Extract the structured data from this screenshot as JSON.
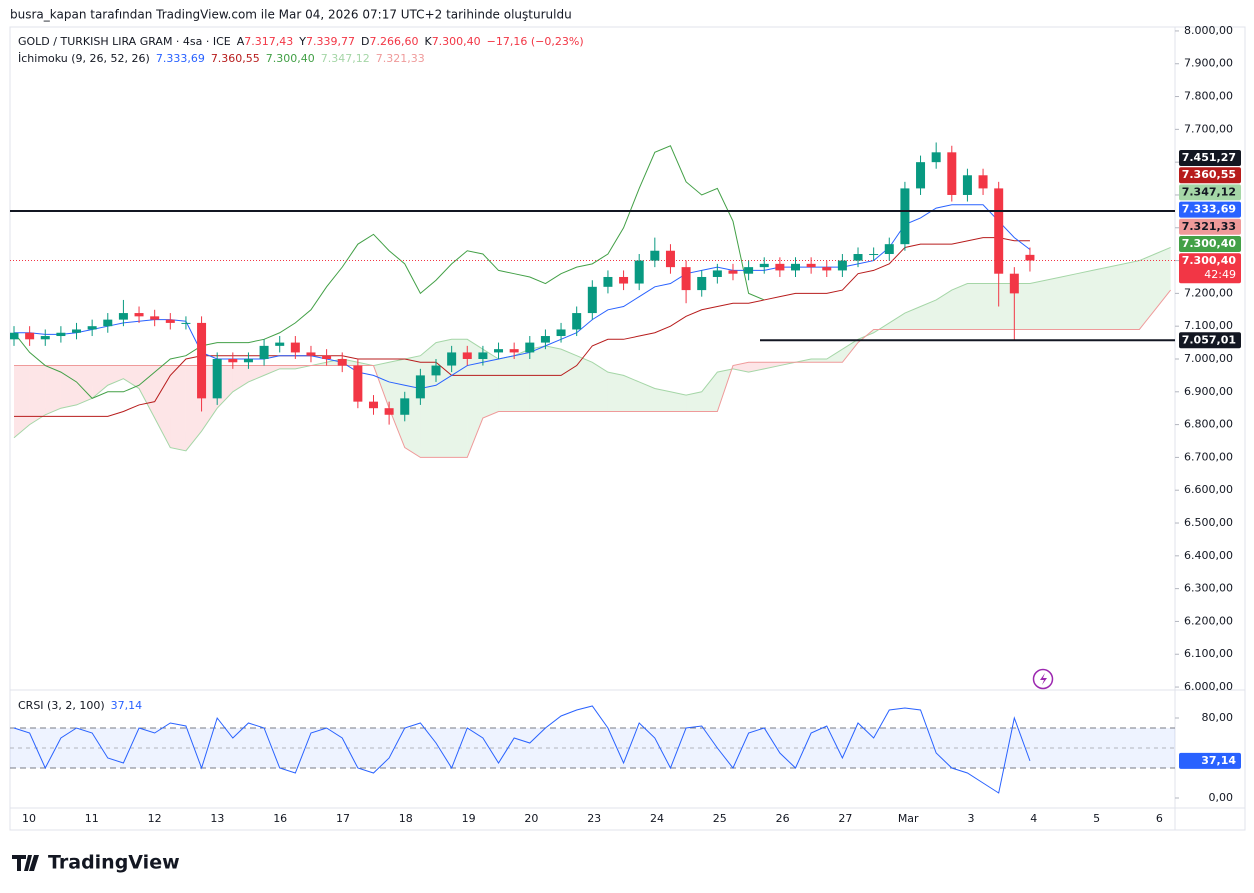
{
  "chart_data": {
    "type": "candlestick",
    "watermark": "busra_kapan tarafından TradingView.com ile Mar 04, 2026 07:17 UTC+2 tarihinde oluşturuldu",
    "symbol": "GOLD / TURKISH LIRA GRAM · 4sa · ICE",
    "ohlc": [
      {
        "key": "A",
        "value": "7.317,43"
      },
      {
        "key": "Y",
        "value": "7.339,77"
      },
      {
        "key": "D",
        "value": "7.266,60"
      },
      {
        "key": "K",
        "value": "7.300,40"
      }
    ],
    "change": "−17,16 (−0,23%)",
    "brand": "TradingView",
    "categories": [
      "10",
      "11",
      "12",
      "13",
      "16",
      "17",
      "18",
      "19",
      "20",
      "23",
      "24",
      "25",
      "26",
      "27",
      "Mar",
      "3",
      "4",
      "5",
      "6"
    ],
    "ylim": [
      5991,
      8012
    ],
    "yticks": [
      {
        "value": 6000,
        "label": "6.000,00"
      },
      {
        "value": 6100,
        "label": "6.100,00"
      },
      {
        "value": 6200,
        "label": "6.200,00"
      },
      {
        "value": 6300,
        "label": "6.300,00"
      },
      {
        "value": 6400,
        "label": "6.400,00"
      },
      {
        "value": 6500,
        "label": "6.500,00"
      },
      {
        "value": 6600,
        "label": "6.600,00"
      },
      {
        "value": 6700,
        "label": "6.700,00"
      },
      {
        "value": 6800,
        "label": "6.800,00"
      },
      {
        "value": 6900,
        "label": "6.900,00"
      },
      {
        "value": 7000,
        "label": "7.000,00"
      },
      {
        "value": 7100,
        "label": "7.100,00"
      },
      {
        "value": 7200,
        "label": "7.200,00"
      },
      {
        "value": 7300,
        "label": "7.300,00"
      },
      {
        "value": 7400,
        "label": "7.400,00"
      },
      {
        "value": 7500,
        "label": "7.500,00"
      },
      {
        "value": 7600,
        "label": "7.600,00"
      },
      {
        "value": 7700,
        "label": "7.700,00"
      },
      {
        "value": 7800,
        "label": "7.800,00"
      },
      {
        "value": 7900,
        "label": "7.900,00"
      },
      {
        "value": 8000,
        "label": "8.000,00"
      }
    ],
    "up_color": "#089981",
    "down_color": "#f23645",
    "candles": {
      "open": [
        7060,
        7080,
        7060,
        7070,
        7080,
        7090,
        7100,
        7120,
        7140,
        7130,
        7120,
        7110,
        7110,
        6880,
        7000,
        6990,
        7000,
        7040,
        7050,
        7020,
        7010,
        7000,
        6980,
        6870,
        6850,
        6830,
        6880,
        6950,
        6980,
        7020,
        7000,
        7020,
        7030,
        7020,
        7050,
        7070,
        7090,
        7140,
        7220,
        7250,
        7230,
        7300,
        7330,
        7280,
        7210,
        7250,
        7270,
        7260,
        7280,
        7290,
        7270,
        7290,
        7280,
        7270,
        7300,
        7320,
        7320,
        7350,
        7520,
        7600,
        7630,
        7500,
        7560,
        7520,
        7260,
        7317.43
      ],
      "high": [
        7100,
        7100,
        7090,
        7100,
        7110,
        7120,
        7140,
        7180,
        7160,
        7150,
        7140,
        7130,
        7130,
        7020,
        7020,
        7020,
        7060,
        7070,
        7070,
        7040,
        7030,
        7020,
        7000,
        6890,
        6870,
        6900,
        6970,
        7000,
        7040,
        7040,
        7040,
        7050,
        7050,
        7070,
        7090,
        7110,
        7160,
        7240,
        7270,
        7270,
        7320,
        7370,
        7350,
        7300,
        7270,
        7290,
        7290,
        7300,
        7310,
        7310,
        7310,
        7310,
        7300,
        7320,
        7340,
        7340,
        7370,
        7540,
        7620,
        7660,
        7650,
        7580,
        7580,
        7540,
        7280,
        7339.77
      ],
      "low": [
        7040,
        7040,
        7040,
        7050,
        7060,
        7070,
        7080,
        7100,
        7110,
        7100,
        7090,
        7090,
        6840,
        6860,
        6970,
        6970,
        6980,
        7020,
        7000,
        6990,
        6980,
        6960,
        6850,
        6830,
        6800,
        6810,
        6860,
        6930,
        6960,
        6980,
        6980,
        7000,
        7000,
        7000,
        7030,
        7050,
        7070,
        7120,
        7200,
        7210,
        7210,
        7280,
        7260,
        7170,
        7190,
        7230,
        7240,
        7240,
        7260,
        7250,
        7250,
        7260,
        7250,
        7250,
        7280,
        7300,
        7300,
        7330,
        7500,
        7580,
        7480,
        7480,
        7500,
        7160,
        7057,
        7266.6
      ],
      "close": [
        7080,
        7060,
        7070,
        7080,
        7090,
        7100,
        7120,
        7140,
        7130,
        7120,
        7110,
        7110,
        6880,
        7000,
        6990,
        7000,
        7040,
        7050,
        7020,
        7010,
        7000,
        6980,
        6870,
        6850,
        6830,
        6880,
        6950,
        6980,
        7020,
        7000,
        7020,
        7030,
        7020,
        7050,
        7070,
        7090,
        7140,
        7220,
        7250,
        7230,
        7300,
        7330,
        7280,
        7210,
        7250,
        7270,
        7260,
        7280,
        7290,
        7270,
        7290,
        7280,
        7270,
        7300,
        7320,
        7320,
        7350,
        7520,
        7600,
        7630,
        7500,
        7560,
        7520,
        7260,
        7200,
        7300.4
      ]
    },
    "ichimoku": {
      "label": "İchimoku (9, 26, 52, 26)",
      "conversion": {
        "color": "#2962ff",
        "legend_value": "7.333,69",
        "values": [
          7080,
          7080,
          7075,
          7075,
          7080,
          7090,
          7100,
          7110,
          7115,
          7120,
          7120,
          7115,
          7020,
          7000,
          7000,
          7000,
          7000,
          7010,
          7010,
          7010,
          7000,
          6990,
          6960,
          6950,
          6930,
          6920,
          6910,
          6920,
          6950,
          6980,
          6990,
          7000,
          7010,
          7020,
          7040,
          7060,
          7080,
          7120,
          7150,
          7160,
          7190,
          7220,
          7230,
          7260,
          7270,
          7280,
          7270,
          7270,
          7270,
          7280,
          7280,
          7280,
          7280,
          7280,
          7290,
          7300,
          7340,
          7410,
          7430,
          7460,
          7470,
          7470,
          7470,
          7420,
          7370,
          7333.69
        ]
      },
      "base": {
        "color": "#b71c1c",
        "legend_value": "7.360,55",
        "values": [
          6825,
          6825,
          6825,
          6825,
          6825,
          6825,
          6825,
          6840,
          6860,
          6870,
          6950,
          7000,
          7010,
          7010,
          7010,
          7010,
          7010,
          7010,
          7010,
          7010,
          7010,
          7010,
          7000,
          7000,
          7000,
          7000,
          6990,
          6990,
          6950,
          6950,
          6950,
          6950,
          6950,
          6950,
          6950,
          6950,
          6980,
          7040,
          7060,
          7060,
          7070,
          7080,
          7100,
          7130,
          7150,
          7160,
          7170,
          7170,
          7180,
          7190,
          7200,
          7200,
          7200,
          7210,
          7260,
          7270,
          7290,
          7340,
          7350,
          7350,
          7350,
          7360,
          7370,
          7370,
          7360.55,
          7360.55
        ]
      },
      "lagging": {
        "color": "#43a047",
        "legend_value": "7.300,40",
        "values": [
          7080,
          7020,
          6980,
          6960,
          6930,
          6880,
          6900,
          6900,
          6920,
          6960,
          7000,
          7010,
          7040,
          7050,
          7050,
          7050,
          7060,
          7080,
          7110,
          7150,
          7220,
          7280,
          7350,
          7380,
          7330,
          7290,
          7200,
          7240,
          7290,
          7330,
          7320,
          7270,
          7260,
          7250,
          7230,
          7260,
          7280,
          7290,
          7320,
          7400,
          7520,
          7630,
          7650,
          7540,
          7500,
          7520,
          7420,
          7200,
          7180
        ]
      },
      "span_a": {
        "color": "#a5d6a7",
        "legend_value": "7.347,12",
        "values": [
          6760,
          6800,
          6830,
          6850,
          6860,
          6880,
          6920,
          6940,
          6910,
          6820,
          6730,
          6720,
          6780,
          6850,
          6900,
          6930,
          6950,
          6970,
          6970,
          6980,
          6990,
          7000,
          6990,
          6980,
          6990,
          7000,
          7010,
          7050,
          7060,
          7060,
          7030,
          7000,
          7010,
          7030,
          7040,
          7030,
          7010,
          6990,
          6960,
          6950,
          6930,
          6910,
          6900,
          6890,
          6900,
          6960,
          6970,
          6960,
          6970,
          6980,
          6990,
          7000,
          7000,
          7030,
          7060,
          7080,
          7110,
          7140,
          7160,
          7180,
          7210,
          7230,
          7230,
          7230,
          7230,
          7230,
          7240,
          7250,
          7260,
          7270,
          7280,
          7290,
          7300,
          7320,
          7340
        ]
      },
      "span_b": {
        "color": "#ef9a9a",
        "legend_value": "7.321,33",
        "values": [
          6980,
          6980,
          6980,
          6980,
          6980,
          6980,
          6980,
          6980,
          6980,
          6980,
          6980,
          6980,
          6980,
          6980,
          6980,
          6980,
          6980,
          6980,
          6980,
          6980,
          6980,
          6980,
          6980,
          6980,
          6850,
          6730,
          6700,
          6700,
          6700,
          6700,
          6820,
          6840,
          6840,
          6840,
          6840,
          6840,
          6840,
          6840,
          6840,
          6840,
          6840,
          6840,
          6840,
          6840,
          6840,
          6840,
          6980,
          6990,
          6990,
          6990,
          6990,
          6990,
          6990,
          6990,
          7050,
          7090,
          7090,
          7090,
          7090,
          7090,
          7090,
          7090,
          7090,
          7090,
          7090,
          7090,
          7090,
          7090,
          7090,
          7090,
          7090,
          7090,
          7090,
          7150,
          7210
        ]
      },
      "cloud_up": "rgba(76,175,80,0.13)",
      "cloud_down": "rgba(242,54,69,0.13)"
    },
    "hlines": [
      {
        "value": 7451.27,
        "label": "7.451,27",
        "color": "#131722"
      },
      {
        "value": 7057.01,
        "label": "7.057,01",
        "color": "#131722"
      }
    ],
    "price_labels": [
      {
        "value": 7451.27,
        "label": "7.451,27",
        "color": "#131722",
        "text_color": "#ffffff"
      },
      {
        "value": 7360.55,
        "label": "7.360,55",
        "color": "#b71c1c",
        "text_color": "#ffffff"
      },
      {
        "value": 7347.12,
        "label": "7.347,12",
        "color": "#a5d6a7",
        "text_color": "#131722"
      },
      {
        "value": 7333.69,
        "label": "7.333,69",
        "color": "#2962ff",
        "text_color": "#ffffff"
      },
      {
        "value": 7321.33,
        "label": "7.321,33",
        "color": "#ef9a9a",
        "text_color": "#131722"
      },
      {
        "value": 7300.4,
        "label": "7.300,40",
        "color": "#43a047",
        "text_color": "#ffffff"
      },
      {
        "value": 7300.4,
        "label": "7.300,40",
        "color": "#f23645",
        "text_color": "#ffffff",
        "countdown": "42:49"
      }
    ],
    "crsi": {
      "title": "CRSI (3, 2, 100)",
      "value_label": "37,14",
      "color": "#2962ff",
      "ylim": [
        -10,
        108
      ],
      "yticks": [
        {
          "value": 0,
          "label": "0,00"
        },
        {
          "value": 80,
          "label": "80,00"
        }
      ],
      "bands": [
        30,
        70
      ],
      "mid": 50,
      "values": [
        70,
        65,
        30,
        60,
        70,
        65,
        40,
        35,
        70,
        65,
        75,
        72,
        30,
        80,
        60,
        75,
        70,
        30,
        25,
        65,
        70,
        60,
        30,
        25,
        40,
        70,
        75,
        55,
        30,
        70,
        60,
        35,
        60,
        55,
        70,
        82,
        88,
        92,
        70,
        35,
        75,
        60,
        30,
        70,
        72,
        50,
        30,
        65,
        70,
        45,
        30,
        65,
        72,
        40,
        75,
        60,
        88,
        90,
        88,
        45,
        30,
        25,
        15,
        5,
        80,
        37.14
      ]
    }
  }
}
